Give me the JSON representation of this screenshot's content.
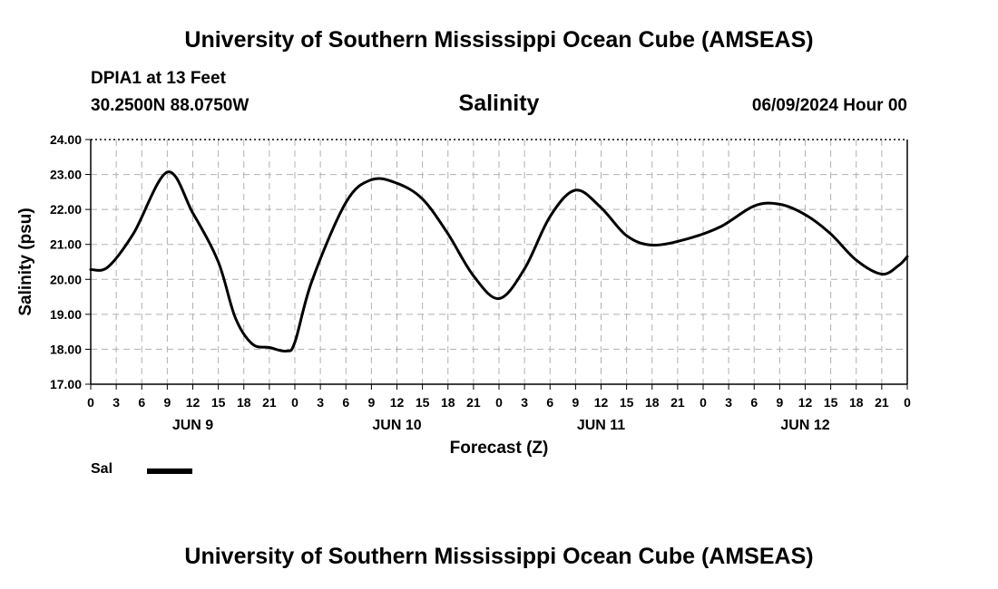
{
  "header": {
    "title": "University of Southern Mississippi Ocean Cube (AMSEAS)",
    "station": "DPIA1 at 13 Feet",
    "coords": "30.2500N  88.0750W",
    "parameter": "Salinity",
    "datetime": "06/09/2024 Hour 00"
  },
  "footer": {
    "title": "University of Southern Mississippi Ocean Cube (AMSEAS)"
  },
  "legend": {
    "items": [
      {
        "label": "Sal",
        "color": "#000000"
      }
    ]
  },
  "chart_data": {
    "type": "line",
    "title": "Salinity",
    "xlabel": "Forecast (Z)",
    "ylabel": "Salinity (psu)",
    "ylim": [
      17,
      24
    ],
    "yticks": [
      "17.00",
      "18.00",
      "19.00",
      "20.00",
      "21.00",
      "22.00",
      "23.00",
      "24.00"
    ],
    "xlim": [
      0,
      96
    ],
    "xtick_labels": [
      "0",
      "3",
      "6",
      "9",
      "12",
      "15",
      "18",
      "21",
      "0",
      "3",
      "6",
      "9",
      "12",
      "15",
      "18",
      "21",
      "0",
      "3",
      "6",
      "9",
      "12",
      "15",
      "18",
      "21",
      "0",
      "3",
      "6",
      "9",
      "12",
      "15",
      "18",
      "21",
      "0"
    ],
    "day_labels": [
      {
        "label": "JUN 9",
        "hour": 12
      },
      {
        "label": "JUN 10",
        "hour": 36
      },
      {
        "label": "JUN 11",
        "hour": 60
      },
      {
        "label": "JUN 12",
        "hour": 84
      }
    ],
    "grid": true,
    "series": [
      {
        "name": "Sal",
        "x": [
          0,
          2,
          5,
          9,
          12,
          15,
          17,
          19,
          21,
          23,
          24,
          26,
          30,
          33,
          36,
          39,
          42,
          45,
          48,
          51,
          54,
          57,
          60,
          63,
          66,
          70,
          74,
          78,
          81,
          84,
          87,
          90,
          93,
          95,
          96
        ],
        "values": [
          20.28,
          20.35,
          21.3,
          23.07,
          21.9,
          20.5,
          18.9,
          18.15,
          18.05,
          17.95,
          18.2,
          19.95,
          22.2,
          22.85,
          22.75,
          22.3,
          21.3,
          20.1,
          19.45,
          20.3,
          21.8,
          22.55,
          22.05,
          21.25,
          20.98,
          21.15,
          21.5,
          22.1,
          22.15,
          21.85,
          21.3,
          20.55,
          20.15,
          20.4,
          20.65
        ]
      }
    ]
  }
}
